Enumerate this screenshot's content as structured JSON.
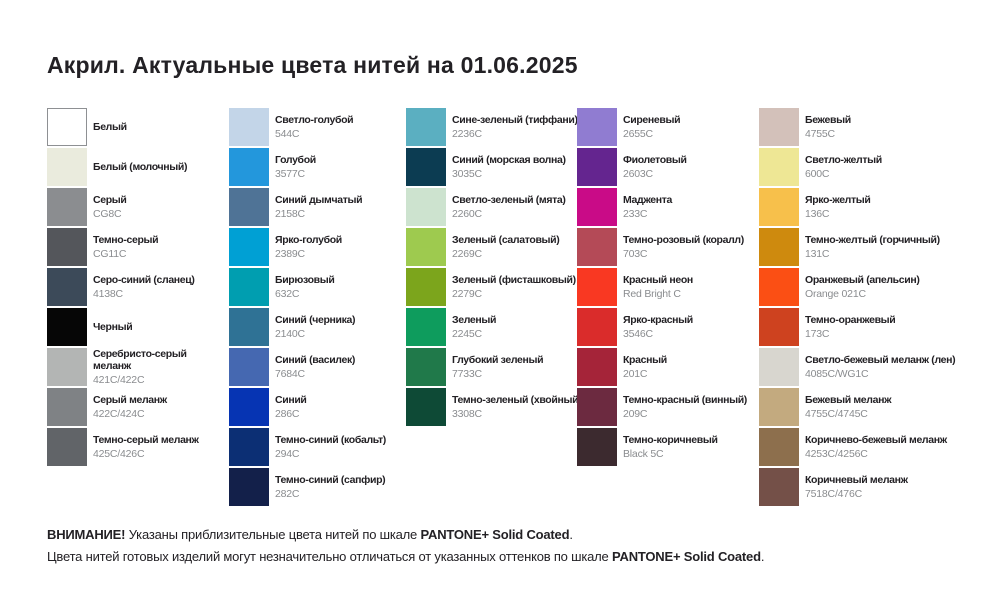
{
  "title": "Акрил. Актуальные цвета нитей на 01.06.2025",
  "columns": [
    {
      "items": [
        {
          "name": "Белый",
          "code": "",
          "hex": "#FFFFFF",
          "border": true
        },
        {
          "name": "Белый (молочный)",
          "code": "",
          "hex": "#EAEBDD"
        },
        {
          "name": "Серый",
          "code": "CG8C",
          "hex": "#8B8D90"
        },
        {
          "name": "Темно-серый",
          "code": "CG11C",
          "hex": "#54565B"
        },
        {
          "name": "Серо-синий (сланец)",
          "code": "4138C",
          "hex": "#3C4A59"
        },
        {
          "name": "Черный",
          "code": "",
          "hex": "#060606"
        },
        {
          "name": "Серебристо-серый\nмеланж",
          "code": "421C/422C",
          "hex": "#B3B5B4"
        },
        {
          "name": "Серый меланж",
          "code": "422C/424C",
          "hex": "#7F8285"
        },
        {
          "name": "Темно-серый меланж",
          "code": "425C/426C",
          "hex": "#616468"
        }
      ]
    },
    {
      "items": [
        {
          "name": "Светло-голубой",
          "code": "544C",
          "hex": "#C3D5E8"
        },
        {
          "name": "Голубой",
          "code": "3577C",
          "hex": "#2397DC"
        },
        {
          "name": "Синий дымчатый",
          "code": "2158C",
          "hex": "#4F7396"
        },
        {
          "name": "Ярко-голубой",
          "code": "2389C",
          "hex": "#00A0D4"
        },
        {
          "name": "Бирюзовый",
          "code": "632C",
          "hex": "#009EB0"
        },
        {
          "name": "Синий (черника)",
          "code": "2140C",
          "hex": "#2F7295"
        },
        {
          "name": "Синий (василек)",
          "code": "7684C",
          "hex": "#4568B1"
        },
        {
          "name": "Синий",
          "code": "286C",
          "hex": "#0634B3"
        },
        {
          "name": "Темно-синий (кобальт)",
          "code": "294C",
          "hex": "#0C2F74"
        },
        {
          "name": "Темно-синий (сапфир)",
          "code": "282C",
          "hex": "#13204A"
        }
      ]
    },
    {
      "items": [
        {
          "name": "Сине-зеленый (тиффани)",
          "code": "2236C",
          "hex": "#5BAFC1"
        },
        {
          "name": "Синий (морская волна)",
          "code": "3035C",
          "hex": "#0C3C52"
        },
        {
          "name": "Светло-зеленый (мята)",
          "code": "2260C",
          "hex": "#CDE3CF"
        },
        {
          "name": "Зеленый (салатовый)",
          "code": "2269C",
          "hex": "#9ECA4F"
        },
        {
          "name": "Зеленый (фисташковый)",
          "code": "2279C",
          "hex": "#7CA51C"
        },
        {
          "name": "Зеленый",
          "code": "2245C",
          "hex": "#0E9C5D"
        },
        {
          "name": "Глубокий зеленый",
          "code": "7733C",
          "hex": "#20794A"
        },
        {
          "name": "Темно-зеленый (хвойный)",
          "code": "3308C",
          "hex": "#0E4A36"
        }
      ]
    },
    {
      "items": [
        {
          "name": "Сиреневый",
          "code": "2655C",
          "hex": "#907CD1"
        },
        {
          "name": "Фиолетовый",
          "code": "2603C",
          "hex": "#64258F"
        },
        {
          "name": "Маджента",
          "code": "233C",
          "hex": "#C90B87"
        },
        {
          "name": "Темно-розовый (коралл)",
          "code": "703C",
          "hex": "#B44A57"
        },
        {
          "name": "Красный неон",
          "code": "Red Bright C",
          "hex": "#F93822"
        },
        {
          "name": "Ярко-красный",
          "code": "3546C",
          "hex": "#DA2C2B"
        },
        {
          "name": "Красный",
          "code": "201C",
          "hex": "#A52439"
        },
        {
          "name": "Темно-красный (винный)",
          "code": "209C",
          "hex": "#6C2A40"
        },
        {
          "name": "Темно-коричневый",
          "code": "Black 5C",
          "hex": "#3C2A2F"
        }
      ]
    },
    {
      "items": [
        {
          "name": "Бежевый",
          "code": "4755C",
          "hex": "#D3C1BA"
        },
        {
          "name": "Светло-желтый",
          "code": "600C",
          "hex": "#EEE795"
        },
        {
          "name": "Ярко-желтый",
          "code": "136C",
          "hex": "#F7C04B"
        },
        {
          "name": "Темно-желтый (горчичный)",
          "code": "131C",
          "hex": "#CE8A0E"
        },
        {
          "name": "Оранжевый (апельсин)",
          "code": "Orange 021C",
          "hex": "#FB4F14"
        },
        {
          "name": "Темно-оранжевый",
          "code": "173C",
          "hex": "#CE421F"
        },
        {
          "name": "Светло-бежевый меланж (лен)",
          "code": "4085C/WG1C",
          "hex": "#D8D6CF"
        },
        {
          "name": "Бежевый меланж",
          "code": "4755C/4745C",
          "hex": "#C3AA7F"
        },
        {
          "name": "Коричнево-бежевый меланж",
          "code": "4253C/4256C",
          "hex": "#8D6F4D"
        },
        {
          "name": "Коричневый меланж",
          "code": "7518C/476C",
          "hex": "#745048"
        }
      ]
    }
  ],
  "footer": {
    "line1": [
      {
        "text": "ВНИМАНИЕ!",
        "bold": true
      },
      {
        "text": " Указаны приблизительные цвета нитей по шкале ",
        "bold": false
      },
      {
        "text": "PANTONE+ Solid Coated",
        "bold": true
      },
      {
        "text": ".",
        "bold": false
      }
    ],
    "line2": [
      {
        "text": "Цвета нитей готовых изделий могут незначительно отличаться от указанных оттенков по шкале ",
        "bold": false
      },
      {
        "text": "PANTONE+ Solid Coated",
        "bold": true
      },
      {
        "text": ".",
        "bold": false
      }
    ]
  }
}
